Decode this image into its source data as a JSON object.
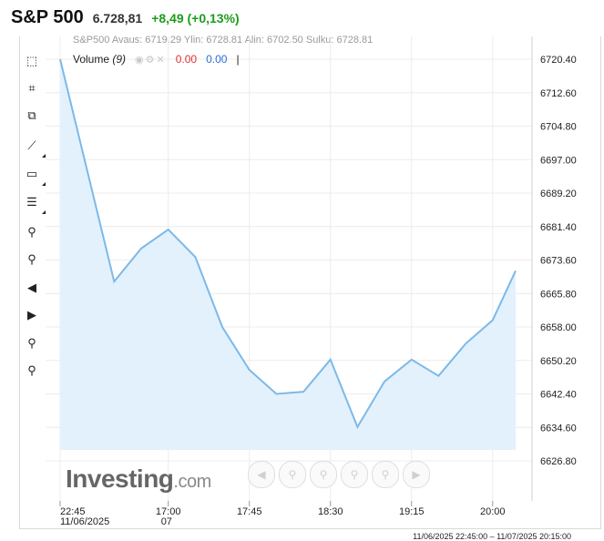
{
  "header": {
    "title": "S&P 500",
    "price": "6.728,81",
    "change": "+8,49 (+0,13%)"
  },
  "legend_ghost": "S&P500  Avaus: 6719.29  Ylin: 6728.81  Alin: 6702.50  Sulku: 6728.81",
  "legend": {
    "volume_label": "Volume",
    "volume_period": "(9)",
    "value1": "0.00",
    "value2": "0.00",
    "separator": "|"
  },
  "brand": {
    "main": "Investing",
    "suffix": ".com"
  },
  "range_text": "11/06/2025 22:45:00 – 11/07/2025 20:15:00",
  "toolbar": [
    "cursor-delete-icon",
    "crosshair-icon",
    "layers-icon",
    "trend-line-icon",
    "rectangle-icon",
    "fibonacci-icon",
    "zoom-in-icon",
    "zoom-out-icon",
    "scroll-left-icon",
    "scroll-right-icon",
    "zoom-range-icon",
    "zoom-reset-icon"
  ],
  "colors": {
    "line": "#7cb9e8",
    "fill": "#e3f1fd",
    "positive": "#1b9d1b",
    "grid": "#ececec"
  },
  "chart_data": {
    "type": "area",
    "ylim": [
      6623,
      6724
    ],
    "y_ticks": [
      "6720.40",
      "6712.60",
      "6704.80",
      "6697.00",
      "6689.20",
      "6681.40",
      "6673.60",
      "6665.80",
      "6658.00",
      "6650.20",
      "6642.40",
      "6634.60",
      "6626.80"
    ],
    "x_ticks": [
      {
        "label": "22:45",
        "sub": "11/06/2025",
        "x": 0
      },
      {
        "label": "17:00",
        "sub": "07",
        "x": 4
      },
      {
        "label": "17:45",
        "sub": "",
        "x": 7
      },
      {
        "label": "18:30",
        "sub": "",
        "x": 10
      },
      {
        "label": "19:15",
        "sub": "",
        "x": 13
      },
      {
        "label": "20:00",
        "sub": "",
        "x": 16
      }
    ],
    "x_max": 16.85,
    "points": [
      {
        "x": 0,
        "y": 6720.4
      },
      {
        "x": 2,
        "y": 6668.6
      },
      {
        "x": 3,
        "y": 6676.3
      },
      {
        "x": 4,
        "y": 6680.7
      },
      {
        "x": 5,
        "y": 6674.3
      },
      {
        "x": 6,
        "y": 6658.0
      },
      {
        "x": 7,
        "y": 6648.0
      },
      {
        "x": 8,
        "y": 6642.4
      },
      {
        "x": 9,
        "y": 6642.9
      },
      {
        "x": 10,
        "y": 6650.4
      },
      {
        "x": 11,
        "y": 6634.7
      },
      {
        "x": 12,
        "y": 6645.3
      },
      {
        "x": 13,
        "y": 6650.4
      },
      {
        "x": 14,
        "y": 6646.6
      },
      {
        "x": 15,
        "y": 6654.1
      },
      {
        "x": 16,
        "y": 6659.6
      },
      {
        "x": 16.85,
        "y": 6671.1
      }
    ]
  }
}
